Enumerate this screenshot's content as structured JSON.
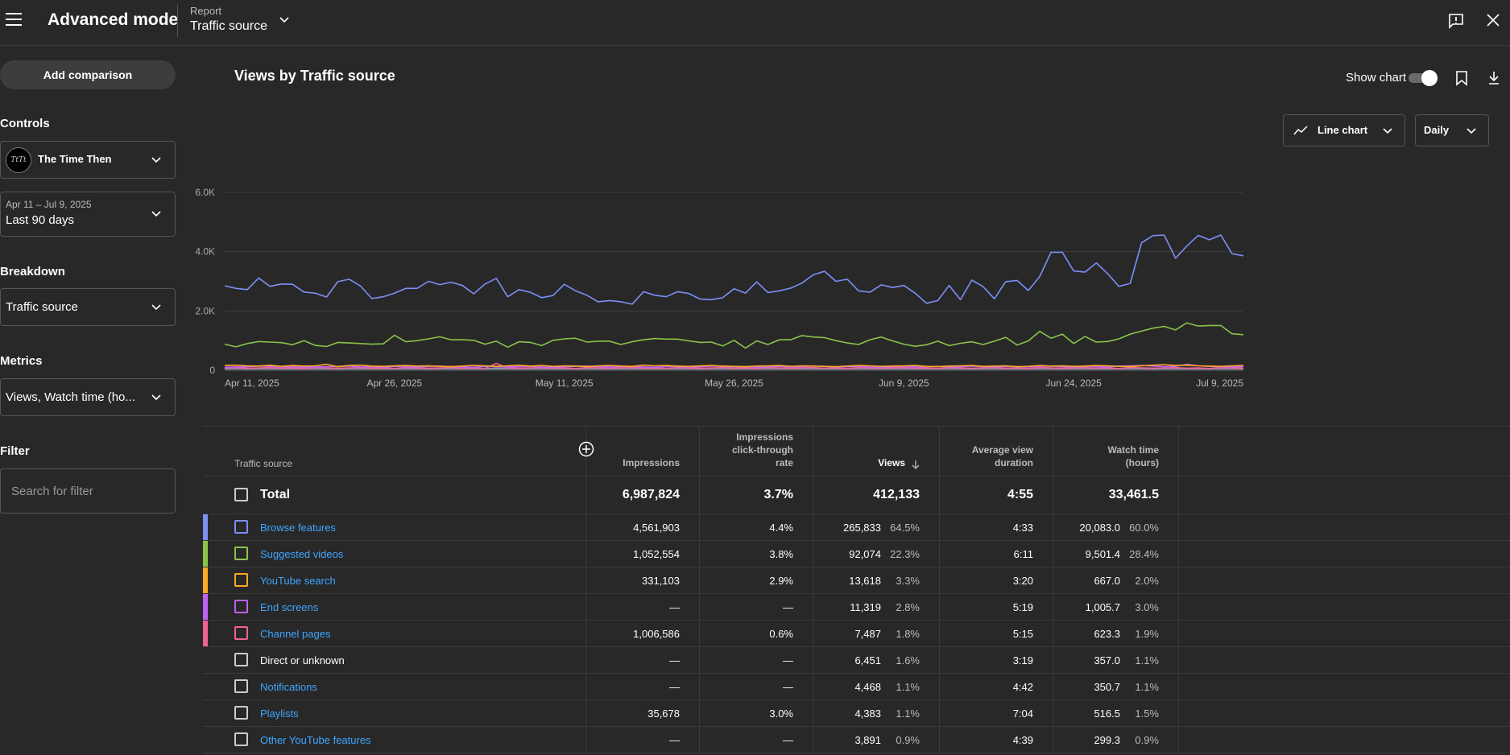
{
  "header": {
    "app_title": "Advanced mode",
    "report_label": "Report",
    "report_value": "Traffic source"
  },
  "sidebar": {
    "add_comparison": "Add comparison",
    "controls_title": "Controls",
    "channel_name": "The Time Then",
    "channel_logo_text": "TtTt",
    "date_range": "Apr 11 – Jul 9, 2025",
    "date_preset": "Last 90 days",
    "breakdown_title": "Breakdown",
    "breakdown_value": "Traffic source",
    "metrics_title": "Metrics",
    "metrics_value": "Views, Watch time (ho...",
    "filter_title": "Filter",
    "filter_placeholder": "Search for filter"
  },
  "chart_panel": {
    "title": "Views by Traffic source",
    "show_chart_label": "Show chart",
    "chart_type": "Line chart",
    "granularity": "Daily"
  },
  "chart_data": {
    "type": "line",
    "title": "Views by Traffic source",
    "x_tick_labels": [
      "Apr 11, 2025",
      "Apr 26, 2025",
      "May 11, 2025",
      "May 26, 2025",
      "Jun 9, 2025",
      "Jun 24, 2025",
      "Jul 9, 2025"
    ],
    "y_tick_labels": [
      "0",
      "2.0K",
      "4.0K",
      "6.0K"
    ],
    "ylim": [
      0,
      6000
    ],
    "grid": true,
    "series": [
      {
        "color": "#7c8ff5",
        "values": [
          2850,
          2760,
          2720,
          3110,
          2830,
          2910,
          2900,
          2640,
          2600,
          2470,
          2990,
          3070,
          2840,
          2420,
          2480,
          2600,
          2760,
          2760,
          3000,
          2890,
          2970,
          2860,
          2580,
          2910,
          3100,
          2480,
          2720,
          2630,
          2450,
          2520,
          2900,
          2680,
          2530,
          2310,
          2350,
          2310,
          2230,
          2650,
          2530,
          2480,
          2650,
          2590,
          2400,
          2380,
          2450,
          2750,
          2600,
          2980,
          2620,
          2680,
          2770,
          2940,
          3220,
          3340,
          3000,
          3070,
          2680,
          2630,
          2880,
          2790,
          2860,
          2600,
          2260,
          2350,
          2860,
          2380,
          3040,
          2820,
          2410,
          2990,
          3030,
          2690,
          3160,
          3980,
          3980,
          3350,
          3310,
          3620,
          3260,
          2830,
          2930,
          4300,
          4540,
          4560,
          3780,
          4190,
          4550,
          4400,
          4560,
          3930,
          3860
        ]
      },
      {
        "color": "#8bc34a",
        "values": [
          880,
          790,
          900,
          970,
          950,
          930,
          860,
          1000,
          840,
          800,
          940,
          920,
          900,
          880,
          890,
          1180,
          960,
          1000,
          1060,
          1130,
          1030,
          1030,
          1010,
          880,
          980,
          780,
          960,
          940,
          830,
          1010,
          1060,
          1080,
          950,
          980,
          980,
          870,
          960,
          1030,
          1070,
          1050,
          1050,
          990,
          940,
          950,
          820,
          1010,
          750,
          990,
          870,
          1030,
          1030,
          1170,
          1120,
          1100,
          1000,
          920,
          870,
          1030,
          1120,
          990,
          880,
          810,
          860,
          980,
          830,
          910,
          960,
          870,
          980,
          1110,
          850,
          990,
          1310,
          1080,
          1220,
          900,
          1140,
          950,
          970,
          1060,
          1220,
          1320,
          1420,
          1480,
          1360,
          1600,
          1490,
          1510,
          1510,
          1230,
          1200
        ]
      },
      {
        "color": "#ffa726",
        "values": [
          160,
          170,
          150,
          140,
          170,
          130,
          160,
          140,
          150,
          200,
          120,
          160,
          170,
          140,
          130,
          150,
          160,
          140,
          150,
          130,
          120,
          140,
          160,
          150,
          130,
          150,
          170,
          140,
          160,
          130,
          150,
          140,
          120,
          150,
          160,
          140,
          130,
          170,
          150,
          160,
          140,
          130,
          150,
          160,
          140,
          130,
          120,
          140,
          150,
          160,
          130,
          150,
          140,
          130,
          120,
          140,
          160,
          150,
          130,
          140,
          150,
          160,
          130,
          120,
          140,
          150,
          160,
          130,
          140,
          150,
          120,
          130,
          160,
          140,
          150,
          130,
          140,
          160,
          150,
          130,
          120,
          150,
          170,
          190,
          160,
          170,
          150,
          140,
          130,
          150,
          160
        ]
      },
      {
        "color": "#c061f5",
        "values": [
          100,
          110,
          120,
          140,
          130,
          110,
          120,
          100,
          110,
          120,
          130,
          140,
          110,
          120,
          100,
          130,
          120,
          110,
          130,
          140,
          120,
          110,
          100,
          130,
          120,
          110,
          120,
          130,
          110,
          100,
          120,
          130,
          140,
          120,
          110,
          120,
          130,
          110,
          100,
          120,
          130,
          110,
          120,
          140,
          130,
          110,
          120,
          100,
          120,
          130,
          110,
          120,
          140,
          130,
          110,
          120,
          130,
          110,
          100,
          120,
          130,
          110,
          120,
          130,
          110,
          120,
          140,
          120,
          110,
          130,
          120,
          110,
          130,
          140,
          120,
          110,
          130,
          120,
          110,
          140,
          150,
          160,
          140,
          120,
          130,
          200,
          150,
          130,
          120,
          110,
          120
        ]
      },
      {
        "color": "#f06292",
        "values": [
          80,
          90,
          70,
          80,
          90,
          70,
          80,
          60,
          90,
          80,
          70,
          80,
          90,
          70,
          80,
          60,
          90,
          80,
          70,
          80,
          90,
          70,
          80,
          60,
          230,
          80,
          70,
          80,
          90,
          70,
          80,
          60,
          90,
          80,
          70,
          80,
          90,
          70,
          80,
          60,
          90,
          80,
          70,
          80,
          90,
          70,
          80,
          60,
          90,
          80,
          70,
          80,
          90,
          70,
          80,
          60,
          90,
          80,
          70,
          80,
          90,
          70,
          80,
          60,
          90,
          80,
          70,
          80,
          90,
          70,
          80,
          60,
          90,
          80,
          70,
          80,
          90,
          70,
          80,
          60,
          90,
          80,
          70,
          80,
          90,
          70,
          80,
          60,
          90,
          80,
          70
        ]
      },
      {
        "color": "#9e9e9e",
        "values": [
          60,
          70,
          50,
          60,
          70,
          50,
          60,
          50,
          70,
          60,
          50,
          60,
          70,
          50,
          60,
          50,
          70,
          60,
          50,
          60,
          70,
          50,
          60,
          50,
          70,
          60,
          50,
          60,
          70,
          50,
          60,
          50,
          70,
          60,
          50,
          60,
          70,
          50,
          60,
          50,
          70,
          60,
          50,
          60,
          70,
          50,
          60,
          50,
          70,
          60,
          50,
          60,
          70,
          50,
          60,
          50,
          70,
          60,
          50,
          60,
          70,
          50,
          60,
          50,
          70,
          60,
          50,
          60,
          70,
          50,
          60,
          50,
          70,
          60,
          50,
          60,
          70,
          50,
          60,
          50,
          70,
          60,
          50,
          60,
          70,
          50,
          60,
          50,
          70,
          60,
          50
        ]
      },
      {
        "color": "#5c6bc0",
        "values": [
          40,
          50,
          40,
          50,
          40,
          50,
          40,
          50,
          40,
          50,
          40,
          50,
          40,
          50,
          40,
          50,
          40,
          50,
          40,
          50,
          40,
          50,
          40,
          50,
          40,
          50,
          40,
          50,
          40,
          50,
          40,
          50,
          40,
          50,
          40,
          50,
          40,
          50,
          40,
          50,
          40,
          50,
          40,
          50,
          40,
          50,
          40,
          50,
          40,
          50,
          40,
          50,
          40,
          50,
          40,
          50,
          40,
          50,
          40,
          50,
          40,
          50,
          40,
          50,
          40,
          50,
          40,
          50,
          40,
          50,
          40,
          50,
          40,
          50,
          40,
          50,
          40,
          50,
          40,
          50,
          40,
          50,
          40,
          50,
          40,
          50,
          40,
          50,
          40,
          50,
          40
        ]
      }
    ]
  },
  "table": {
    "headers": {
      "source": "Traffic source",
      "impressions": "Impressions",
      "ctr_line1": "Impressions",
      "ctr_line2": "click-through",
      "ctr_line3": "rate",
      "views": "Views",
      "avd_line1": "Average view",
      "avd_line2": "duration",
      "wt_line1": "Watch time",
      "wt_line2": "(hours)"
    },
    "total": {
      "label": "Total",
      "impressions": "6,987,824",
      "ctr": "3.7%",
      "views": "412,133",
      "avd": "4:55",
      "watch_time": "33,461.5"
    },
    "rows": [
      {
        "name": "Browse features",
        "color": "#7c8ff5",
        "link": true,
        "impressions": "4,561,903",
        "ctr": "4.4%",
        "views": "265,833",
        "views_pct": "64.5%",
        "avd": "4:33",
        "watch_time": "20,083.0",
        "wt_pct": "60.0%"
      },
      {
        "name": "Suggested videos",
        "color": "#8bc34a",
        "link": true,
        "impressions": "1,052,554",
        "ctr": "3.8%",
        "views": "92,074",
        "views_pct": "22.3%",
        "avd": "6:11",
        "watch_time": "9,501.4",
        "wt_pct": "28.4%"
      },
      {
        "name": "YouTube search",
        "color": "#ffa726",
        "link": true,
        "impressions": "331,103",
        "ctr": "2.9%",
        "views": "13,618",
        "views_pct": "3.3%",
        "avd": "3:20",
        "watch_time": "667.0",
        "wt_pct": "2.0%"
      },
      {
        "name": "End screens",
        "color": "#c061f5",
        "link": true,
        "impressions": "—",
        "ctr": "—",
        "views": "11,319",
        "views_pct": "2.8%",
        "avd": "5:19",
        "watch_time": "1,005.7",
        "wt_pct": "3.0%"
      },
      {
        "name": "Channel pages",
        "color": "#f06292",
        "link": true,
        "impressions": "1,006,586",
        "ctr": "0.6%",
        "views": "7,487",
        "views_pct": "1.8%",
        "avd": "5:15",
        "watch_time": "623.3",
        "wt_pct": "1.9%"
      },
      {
        "name": "Direct or unknown",
        "color": "",
        "link": false,
        "impressions": "—",
        "ctr": "—",
        "views": "6,451",
        "views_pct": "1.6%",
        "avd": "3:19",
        "watch_time": "357.0",
        "wt_pct": "1.1%"
      },
      {
        "name": "Notifications",
        "color": "",
        "link": true,
        "impressions": "—",
        "ctr": "—",
        "views": "4,468",
        "views_pct": "1.1%",
        "avd": "4:42",
        "watch_time": "350.7",
        "wt_pct": "1.1%"
      },
      {
        "name": "Playlists",
        "color": "",
        "link": true,
        "impressions": "35,678",
        "ctr": "3.0%",
        "views": "4,383",
        "views_pct": "1.1%",
        "avd": "7:04",
        "watch_time": "516.5",
        "wt_pct": "1.5%"
      },
      {
        "name": "Other YouTube features",
        "color": "",
        "link": true,
        "impressions": "—",
        "ctr": "—",
        "views": "3,891",
        "views_pct": "0.9%",
        "avd": "4:39",
        "watch_time": "299.3",
        "wt_pct": "0.9%"
      }
    ]
  }
}
